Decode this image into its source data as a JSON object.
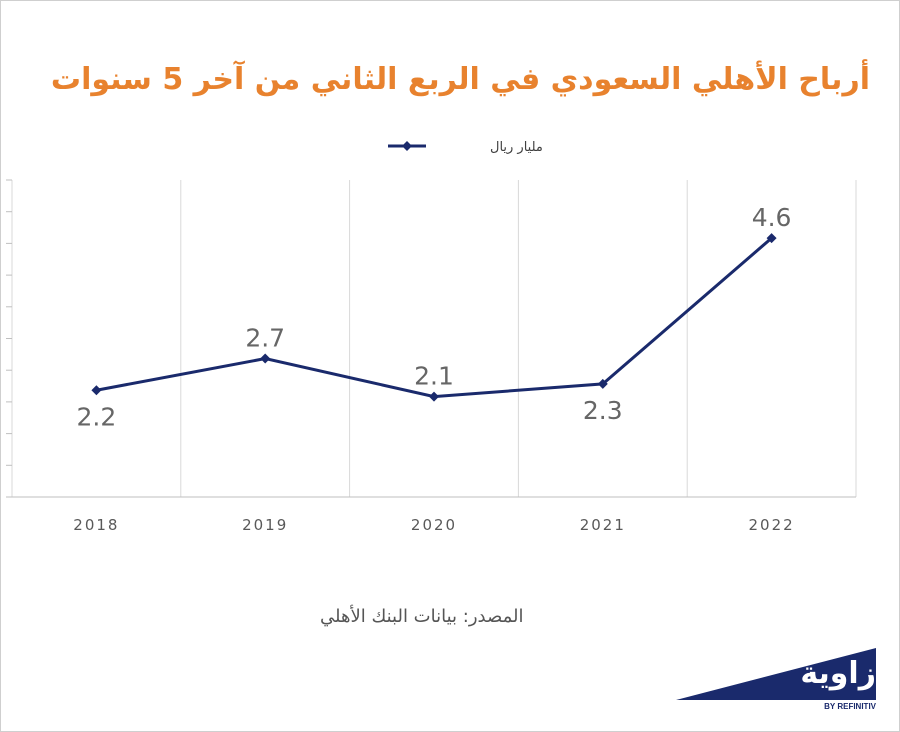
{
  "title": "أرباح الأهلي السعودي في الربع الثاني من آخر 5 سنوات",
  "source_text": "المصدر: بيانات البنك الأهلي",
  "logo": {
    "word": "زاوية",
    "sub": "BY REFINITIV"
  },
  "colors": {
    "title": "#e8822e",
    "line": "#1a2a6c",
    "grid": "#d9d9d9",
    "label": "#666666"
  },
  "chart_data": {
    "type": "line",
    "categories": [
      "2018",
      "2019",
      "2020",
      "2021",
      "2022"
    ],
    "series": [
      {
        "name": "مليار ريال",
        "values": [
          2.2,
          2.7,
          2.1,
          2.3,
          4.6
        ],
        "labels": [
          "2.2",
          "2.7",
          "2.1",
          "2.3",
          "4.6"
        ]
      }
    ],
    "ylim": [
      0,
      5
    ],
    "grid": true,
    "legend": "top-center",
    "xlabel": "",
    "ylabel": ""
  }
}
